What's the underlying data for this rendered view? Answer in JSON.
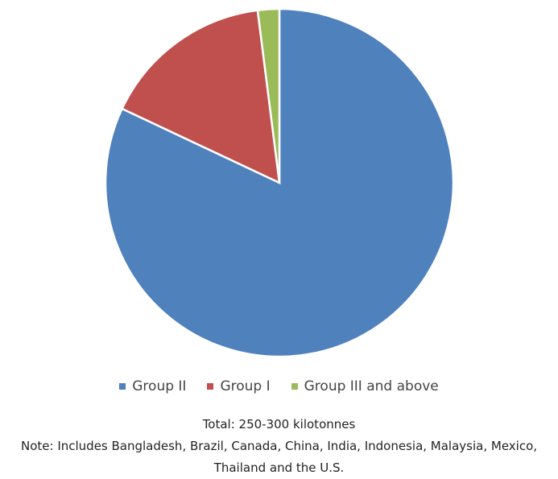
{
  "chart_data": {
    "type": "pie",
    "categories": [
      "Group II",
      "Group I",
      "Group III and above"
    ],
    "values": [
      82,
      16,
      2
    ],
    "colors": [
      "#4f81bd",
      "#c0504d",
      "#9bbb59"
    ],
    "notes": [
      "Total: 250-300 kilotonnes",
      "Note: Includes Bangladesh, Brazil, Canada, China, India, Indonesia, Malaysia, Mexico, Thailand and the U.S."
    ]
  }
}
